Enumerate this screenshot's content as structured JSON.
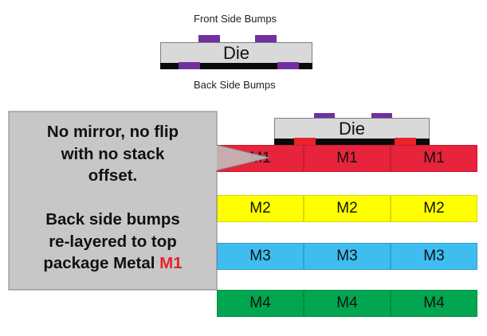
{
  "top_figure": {
    "front_label": "Front Side Bumps",
    "die_label": "Die",
    "back_label": "Back Side Bumps",
    "front_bump_color": "#7030a0",
    "back_bump_color": "#7030a0"
  },
  "stack_figure": {
    "die_label": "Die",
    "top_bump_color": "#7030a0",
    "bottom_bump_color": "#e8232a",
    "layers": [
      {
        "name": "M1",
        "color": "#e8233c",
        "cells": [
          "M1",
          "M1",
          "M1"
        ]
      },
      {
        "name": "M2",
        "color": "#ffff00",
        "cells": [
          "M2",
          "M2",
          "M2"
        ]
      },
      {
        "name": "M3",
        "color": "#3fbdf0",
        "cells": [
          "M3",
          "M3",
          "M3"
        ]
      },
      {
        "name": "M4",
        "color": "#00a650",
        "cells": [
          "M4",
          "M4",
          "M4"
        ]
      }
    ]
  },
  "callout": {
    "line1": "No mirror, no flip",
    "line2": "with no stack",
    "line3": "offset.",
    "line4": "Back side bumps",
    "line5": "re-layered to top",
    "line6_prefix": "package Metal ",
    "line6_highlight": "M1",
    "highlight_color": "#e8232a"
  }
}
